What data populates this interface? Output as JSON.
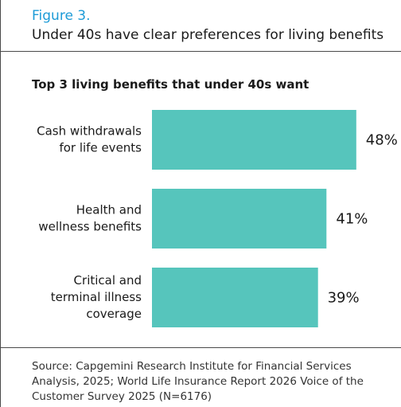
{
  "figure": {
    "label": "Figure 3.",
    "title": "Under 40s have clear preferences for living benefits"
  },
  "source": "Source: Capgemini Research Institute for Financial Services Analysis, 2025;  World Life Insurance Report 2026 Voice of the Customer Survey 2025 (N=6176)",
  "colors": {
    "bar": "#56c5bc",
    "figure_label": "#1d9bd7",
    "rule": "#4a4a4a"
  },
  "chart_data": {
    "type": "bar",
    "orientation": "horizontal",
    "title": "Top 3 living benefits that under 40s want",
    "categories": [
      [
        "Cash withdrawals",
        "for life events"
      ],
      [
        "Health and",
        "wellness benefits"
      ],
      [
        "Critical and",
        "terminal illness",
        "coverage"
      ]
    ],
    "values": [
      48,
      41,
      39
    ],
    "value_labels": [
      "48%",
      "41%",
      "39%"
    ],
    "unit": "%",
    "xlim": [
      0,
      100
    ],
    "grid": false,
    "legend": "none"
  }
}
